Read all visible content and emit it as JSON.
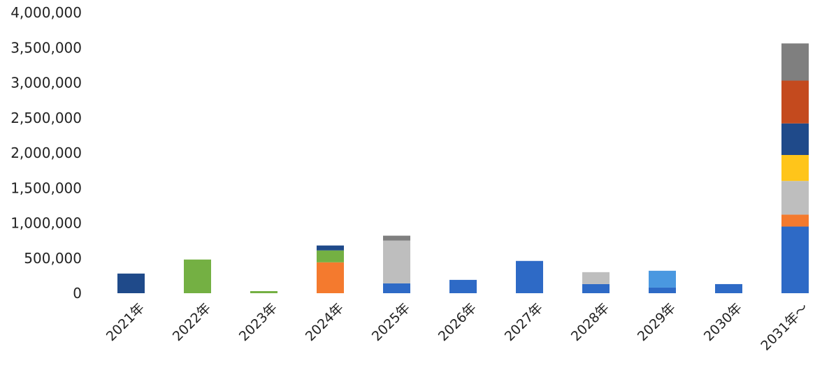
{
  "chart_data": {
    "type": "bar",
    "stacked": true,
    "categories": [
      "2021年",
      "2022年",
      "2023年",
      "2024年",
      "2025年",
      "2026年",
      "2027年",
      "2028年",
      "2029年",
      "2030年",
      "2031年～"
    ],
    "ylim": [
      0,
      4000000
    ],
    "yticks": [
      0,
      500000,
      1000000,
      1500000,
      2000000,
      2500000,
      3000000,
      3500000,
      4000000
    ],
    "ytick_labels": [
      "0",
      "500,000",
      "1,000,000",
      "1,500,000",
      "2,000,000",
      "2,500,000",
      "3,000,000",
      "3,500,000",
      "4,000,000"
    ],
    "grid": false,
    "legend": "none",
    "title": "",
    "xlabel": "",
    "ylabel": "",
    "series": [
      {
        "color": "#2e6ac6",
        "values": [
          0,
          0,
          0,
          0,
          140000,
          190000,
          460000,
          130000,
          80000,
          130000,
          950000
        ]
      },
      {
        "color": "#4a98e0",
        "values": [
          0,
          0,
          0,
          0,
          0,
          0,
          0,
          0,
          240000,
          0,
          0
        ]
      },
      {
        "color": "#f47a2e",
        "values": [
          0,
          0,
          0,
          440000,
          0,
          0,
          0,
          0,
          0,
          0,
          170000
        ]
      },
      {
        "color": "#bebebe",
        "values": [
          0,
          0,
          0,
          0,
          610000,
          0,
          0,
          170000,
          0,
          0,
          480000
        ]
      },
      {
        "color": "#ffc51a",
        "values": [
          0,
          0,
          0,
          0,
          0,
          0,
          0,
          0,
          0,
          0,
          370000
        ]
      },
      {
        "color": "#74b043",
        "values": [
          0,
          480000,
          30000,
          170000,
          0,
          0,
          0,
          0,
          0,
          0,
          0
        ]
      },
      {
        "color": "#1f4a8a",
        "values": [
          280000,
          0,
          0,
          70000,
          0,
          0,
          0,
          0,
          0,
          0,
          450000
        ]
      },
      {
        "color": "#c44a1e",
        "values": [
          0,
          0,
          0,
          0,
          0,
          0,
          0,
          0,
          0,
          0,
          610000
        ]
      },
      {
        "color": "#7f7f7f",
        "values": [
          0,
          0,
          0,
          0,
          70000,
          0,
          0,
          0,
          0,
          0,
          530000
        ]
      }
    ]
  }
}
